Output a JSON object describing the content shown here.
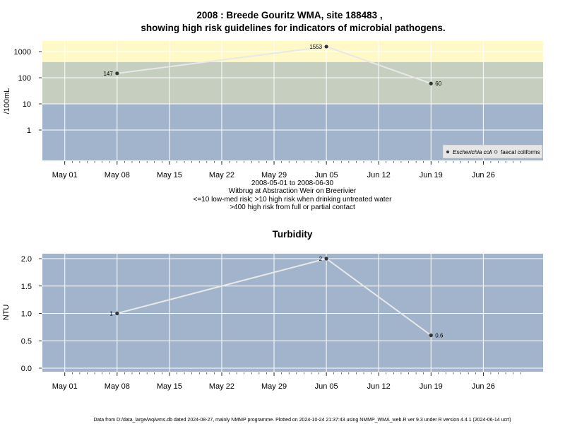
{
  "title_line1": "2008 : Breede Gouritz WMA, site 188483 ,",
  "title_line2": "showing high risk guidelines for indicators of microbial pathogens.",
  "notes": [
    "2008-05-01 to 2008-06-30",
    "Witbrug at Abstraction Weir on Breerivier",
    "<=10 low-med risk; >10 high risk when drinking untreated water",
    ">400 high risk from full or partial contact"
  ],
  "footer": "Data from D:/data_large/wq/wms.db dated 2024-08-27, mainly NMMP programme. Plotted on 2024-10-24 21:37:43 using NMMP_WMA_web.R ver 9.3 under R version 4.4.1 (2024-06-14 ucrt)",
  "colors": {
    "band_low": "#a2b4cc",
    "band_mid": "#c5cebf",
    "band_high": "#fff9c8",
    "grid": "#ffffff",
    "line": "#e8e8e8",
    "marker": "#333333"
  },
  "chart_data": [
    {
      "type": "line",
      "title": "",
      "ylabel": "/100mL",
      "yscale": "log",
      "x_ticks": [
        "May 01",
        "May 08",
        "May 15",
        "May 22",
        "May 29",
        "Jun 05",
        "Jun 12",
        "Jun 19",
        "Jun 26"
      ],
      "y_ticks": [
        "1",
        "10",
        "100",
        "1000"
      ],
      "bands": [
        {
          "from": 0,
          "to": 10,
          "color": "#a2b4cc"
        },
        {
          "from": 10,
          "to": 400,
          "color": "#c5cebf"
        },
        {
          "from": 400,
          "to": 3000,
          "color": "#fff9c8"
        }
      ],
      "legend": {
        "position": "bottom-right",
        "entries": [
          "Escherichia coli",
          "faecal coliforms"
        ]
      },
      "series": [
        {
          "name": "Escherichia coli",
          "points": [
            {
              "x": "2008-05-08",
              "y": 147,
              "label": "147"
            },
            {
              "x": "2008-06-05",
              "y": 1553,
              "label": "1553"
            },
            {
              "x": "2008-06-19",
              "y": 60,
              "label": "60"
            }
          ]
        }
      ]
    },
    {
      "type": "line",
      "title": "Turbidity",
      "ylabel": "NTU",
      "ylim": [
        0,
        2
      ],
      "x_ticks": [
        "May 01",
        "May 08",
        "May 15",
        "May 22",
        "May 29",
        "Jun 05",
        "Jun 12",
        "Jun 19",
        "Jun 26"
      ],
      "y_ticks": [
        "0.0",
        "0.5",
        "1.0",
        "1.5",
        "2.0"
      ],
      "series": [
        {
          "points": [
            {
              "x": "2008-05-08",
              "y": 1,
              "label": "1"
            },
            {
              "x": "2008-06-05",
              "y": 2,
              "label": "2"
            },
            {
              "x": "2008-06-19",
              "y": 0.6,
              "label": "0.6"
            }
          ]
        }
      ]
    }
  ]
}
